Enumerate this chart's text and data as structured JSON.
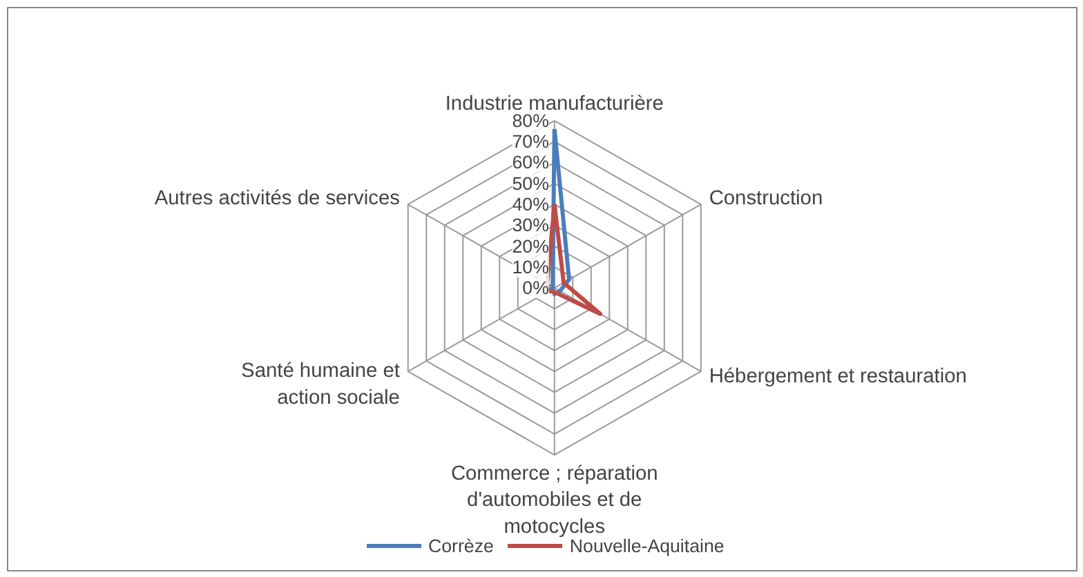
{
  "chart_data": {
    "type": "radar",
    "categories": [
      "Industrie manufacturière",
      "Construction",
      "Hébergement et restauration",
      "Commerce ; réparation d'automobiles et de motocycles",
      "Santé humaine et action sociale",
      "Autres activités de services"
    ],
    "series": [
      {
        "name": "Corrèze",
        "color": "#4a7ebb",
        "values": [
          76,
          8,
          3,
          3,
          1,
          1
        ]
      },
      {
        "name": "Nouvelle-Aquitaine",
        "color": "#be4b48",
        "values": [
          40,
          5,
          25,
          2,
          3,
          4
        ]
      }
    ],
    "ylim": [
      0,
      80
    ],
    "yticks": [
      {
        "value": 0,
        "label": "0%"
      },
      {
        "value": 10,
        "label": "10%"
      },
      {
        "value": 20,
        "label": "20%"
      },
      {
        "value": 30,
        "label": "30%"
      },
      {
        "value": 40,
        "label": "40%"
      },
      {
        "value": 50,
        "label": "50%"
      },
      {
        "value": 60,
        "label": "60%"
      },
      {
        "value": 70,
        "label": "70%"
      },
      {
        "value": 80,
        "label": "80%"
      }
    ],
    "grid": true,
    "legend": "bottom",
    "marker": "none"
  }
}
